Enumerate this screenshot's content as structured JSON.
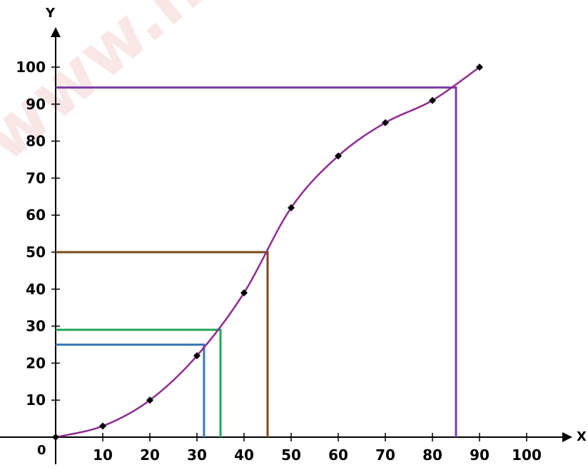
{
  "watermark": "www.n",
  "chart_data": {
    "type": "line",
    "title": "",
    "xlabel": "X",
    "ylabel": "Y",
    "origin_label": "0",
    "xlim": [
      0,
      100
    ],
    "ylim": [
      0,
      100
    ],
    "x_ticks": [
      10,
      20,
      30,
      40,
      50,
      60,
      70,
      80,
      90,
      100
    ],
    "y_ticks": [
      10,
      20,
      30,
      40,
      50,
      60,
      70,
      80,
      90,
      100
    ],
    "grid": false,
    "curve_color": "#8e2c91",
    "series": [
      {
        "points": [
          {
            "x": 0,
            "y": 0
          },
          {
            "x": 10,
            "y": 3
          },
          {
            "x": 20,
            "y": 10
          },
          {
            "x": 30,
            "y": 22
          },
          {
            "x": 40,
            "y": 39
          },
          {
            "x": 50,
            "y": 62
          },
          {
            "x": 60,
            "y": 76
          },
          {
            "x": 70,
            "y": 85
          },
          {
            "x": 80,
            "y": 91
          },
          {
            "x": 90,
            "y": 100
          }
        ]
      }
    ],
    "reference_lines": [
      {
        "x": 85,
        "y": 94.5,
        "color": "#7b3fa8"
      },
      {
        "x": 45,
        "y": 50,
        "color": "#7a4a1e"
      },
      {
        "x": 35,
        "y": 29,
        "color": "#22a85a"
      },
      {
        "x": 31.5,
        "y": 25,
        "color": "#3a78b8"
      }
    ]
  }
}
